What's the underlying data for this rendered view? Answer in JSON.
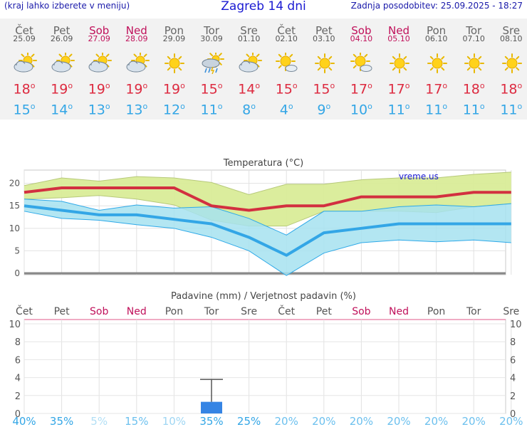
{
  "header": {
    "hint": "(kraj lahko izberete v meniju)",
    "title": "Zagreb 14 dni",
    "updated": "Zadnja posodobitev: 25.09.2025 - 18:27"
  },
  "days": [
    {
      "name": "Čet",
      "date": "25.09",
      "weekend": false,
      "icon": "cloudy-sun-icon",
      "tmax": "18",
      "tmin": "15"
    },
    {
      "name": "Pet",
      "date": "26.09",
      "weekend": false,
      "icon": "cloudy-sun-icon",
      "tmax": "19",
      "tmin": "14"
    },
    {
      "name": "Sob",
      "date": "27.09",
      "weekend": true,
      "icon": "cloudy-sun-icon",
      "tmax": "19",
      "tmin": "13"
    },
    {
      "name": "Ned",
      "date": "28.09",
      "weekend": true,
      "icon": "cloudy-sun-icon",
      "tmax": "19",
      "tmin": "13"
    },
    {
      "name": "Pon",
      "date": "29.09",
      "weekend": false,
      "icon": "sun-icon",
      "tmax": "19",
      "tmin": "12"
    },
    {
      "name": "Tor",
      "date": "30.09",
      "weekend": false,
      "icon": "rain-storm-icon",
      "tmax": "15",
      "tmin": "11"
    },
    {
      "name": "Sre",
      "date": "01.10",
      "weekend": false,
      "icon": "cloudy-sun-icon",
      "tmax": "14",
      "tmin": "8"
    },
    {
      "name": "Čet",
      "date": "02.10",
      "weekend": false,
      "icon": "sun-cloud-small-icon",
      "tmax": "15",
      "tmin": "4"
    },
    {
      "name": "Pet",
      "date": "03.10",
      "weekend": false,
      "icon": "sun-icon",
      "tmax": "15",
      "tmin": "9"
    },
    {
      "name": "Sob",
      "date": "04.10",
      "weekend": true,
      "icon": "sun-cloud-small-icon",
      "tmax": "17",
      "tmin": "10"
    },
    {
      "name": "Ned",
      "date": "05.10",
      "weekend": true,
      "icon": "sun-icon",
      "tmax": "17",
      "tmin": "11"
    },
    {
      "name": "Pon",
      "date": "06.10",
      "weekend": false,
      "icon": "sun-icon",
      "tmax": "17",
      "tmin": "11"
    },
    {
      "name": "Tor",
      "date": "07.10",
      "weekend": false,
      "icon": "sun-icon",
      "tmax": "18",
      "tmin": "11"
    },
    {
      "name": "Sre",
      "date": "08.10",
      "weekend": false,
      "icon": "sun-icon",
      "tmax": "18",
      "tmin": "11"
    }
  ],
  "chart_data": [
    {
      "type": "line",
      "title": "Temperatura (°C)",
      "watermark": "vreme.us",
      "ylim": [
        0,
        22
      ],
      "yticks": [
        0,
        5,
        10,
        15,
        20
      ],
      "grid": true,
      "series": [
        {
          "values": [
            18,
            19,
            19,
            19,
            19,
            15,
            14,
            15,
            15,
            17,
            17,
            17,
            18,
            18
          ],
          "color": "#d23040"
        },
        {
          "values": [
            15,
            14,
            13,
            13,
            12,
            11,
            8,
            4,
            9,
            10,
            11,
            11,
            11,
            11
          ],
          "color": "#33a6e6"
        }
      ],
      "bands": [
        {
          "upper": [
            19.5,
            21.2,
            20.5,
            21.5,
            21.2,
            20.2,
            17.5,
            19.8,
            19.8,
            20.8,
            21.2,
            21.2,
            22,
            22.5
          ],
          "lower": [
            16.5,
            16.8,
            17.3,
            16.5,
            15.2,
            11.8,
            10.5,
            10.5,
            13.8,
            13.8,
            13.8,
            13.5,
            14.8,
            15.5
          ],
          "fill": "#d9ec98",
          "stroke": "#b7c97a"
        },
        {
          "upper": [
            16.5,
            16,
            14,
            15.2,
            14.5,
            14.8,
            12.2,
            8.5,
            13.8,
            13.8,
            14.8,
            15.2,
            14.8,
            15.5
          ],
          "lower": [
            13.8,
            12.2,
            11.8,
            10.8,
            10,
            8,
            5,
            -0.5,
            4.5,
            6.8,
            7.4,
            7,
            7.4,
            6.8
          ],
          "fill": "#a6e2f0",
          "stroke": "#2ea9e8"
        }
      ]
    },
    {
      "type": "bar",
      "title": "Padavine (mm) / Verjetnost padavin (%)",
      "categories": [
        "Čet",
        "Pet",
        "Sob",
        "Ned",
        "Pon",
        "Tor",
        "Sre",
        "Čet",
        "Pet",
        "Sob",
        "Ned",
        "Pon",
        "Tor",
        "Sre"
      ],
      "weekend": [
        false,
        false,
        true,
        true,
        false,
        false,
        false,
        false,
        false,
        true,
        true,
        false,
        false,
        false
      ],
      "ylim": [
        0,
        10
      ],
      "yticks": [
        0,
        2,
        4,
        6,
        8,
        10
      ],
      "values": [
        0,
        0,
        0,
        0,
        0,
        1.3,
        0,
        0,
        0,
        0,
        0,
        0,
        0,
        0
      ],
      "range_max": [
        0,
        0,
        0,
        0,
        0,
        3.8,
        0,
        0,
        0,
        0,
        0,
        0,
        0,
        0
      ],
      "probability": [
        "40%",
        "35%",
        "5%",
        "15%",
        "10%",
        "35%",
        "25%",
        "20%",
        "20%",
        "20%",
        "20%",
        "20%",
        "20%",
        "20%"
      ],
      "probability_colors": [
        "#33a6e6",
        "#33a6e6",
        "#b2dff5",
        "#6cc0ee",
        "#9fd6f3",
        "#33a6e6",
        "#33a6e6",
        "#6cc0ee",
        "#6cc0ee",
        "#6cc0ee",
        "#6cc0ee",
        "#6cc0ee",
        "#6cc0ee",
        "#6cc0ee"
      ],
      "bar_color": "#3584e4"
    }
  ]
}
